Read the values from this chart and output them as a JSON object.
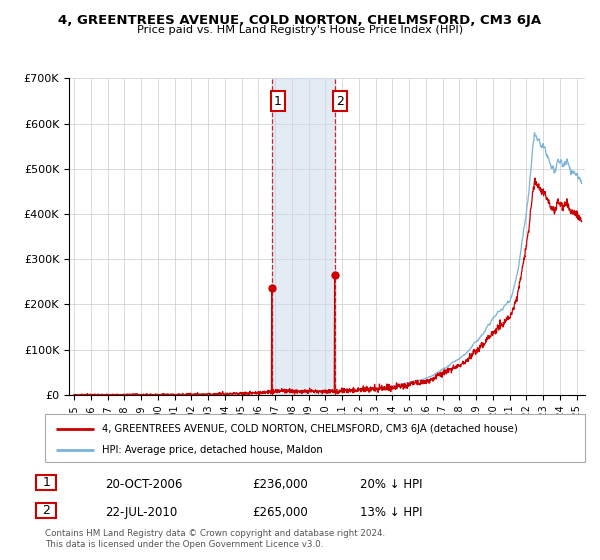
{
  "title": "4, GREENTREES AVENUE, COLD NORTON, CHELMSFORD, CM3 6JA",
  "subtitle": "Price paid vs. HM Land Registry's House Price Index (HPI)",
  "ylim": [
    0,
    700000
  ],
  "yticks": [
    0,
    100000,
    200000,
    300000,
    400000,
    500000,
    600000,
    700000
  ],
  "ytick_labels": [
    "£0",
    "£100K",
    "£200K",
    "£300K",
    "£400K",
    "£500K",
    "£600K",
    "£700K"
  ],
  "grid_color": "#cccccc",
  "purchase1_date": 2006.8,
  "purchase1_price": 236000,
  "purchase2_date": 2010.55,
  "purchase2_price": 265000,
  "shade_color": "#c8d8ed",
  "shade_alpha": 0.5,
  "red_line_color": "#cc0000",
  "blue_line_color": "#7ab3d8",
  "legend_entry1": "4, GREENTREES AVENUE, COLD NORTON, CHELMSFORD, CM3 6JA (detached house)",
  "legend_entry2": "HPI: Average price, detached house, Maldon",
  "annotation1_date": "20-OCT-2006",
  "annotation1_price": "£236,000",
  "annotation1_hpi": "20% ↓ HPI",
  "annotation2_date": "22-JUL-2010",
  "annotation2_price": "£265,000",
  "annotation2_hpi": "13% ↓ HPI",
  "footer": "Contains HM Land Registry data © Crown copyright and database right 2024.\nThis data is licensed under the Open Government Licence v3.0.",
  "xmin": 1994.7,
  "xmax": 2025.5
}
